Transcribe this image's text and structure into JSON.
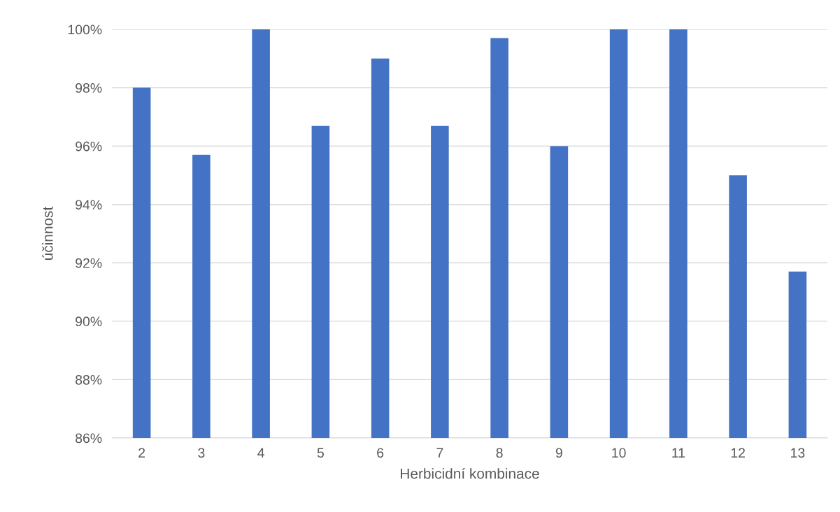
{
  "chart_data": {
    "type": "bar",
    "xlabel": "Herbicidní kombinace",
    "ylabel": "účinnost",
    "categories": [
      "2",
      "3",
      "4",
      "5",
      "6",
      "7",
      "8",
      "9",
      "10",
      "11",
      "12",
      "13"
    ],
    "values": [
      98.0,
      95.7,
      100,
      96.7,
      99.0,
      96.7,
      99.7,
      96.0,
      100,
      100,
      95.0,
      91.7
    ],
    "color": "#4472c4",
    "ylim": [
      86,
      100
    ],
    "yticks": [
      {
        "value": 86,
        "label": "86%"
      },
      {
        "value": 88,
        "label": "88%"
      },
      {
        "value": 90,
        "label": "90%"
      },
      {
        "value": 92,
        "label": "92%"
      },
      {
        "value": 94,
        "label": "94%"
      },
      {
        "value": 96,
        "label": "96%"
      },
      {
        "value": 98,
        "label": "98%"
      },
      {
        "value": 100,
        "label": "100%"
      }
    ],
    "grid": "y"
  }
}
